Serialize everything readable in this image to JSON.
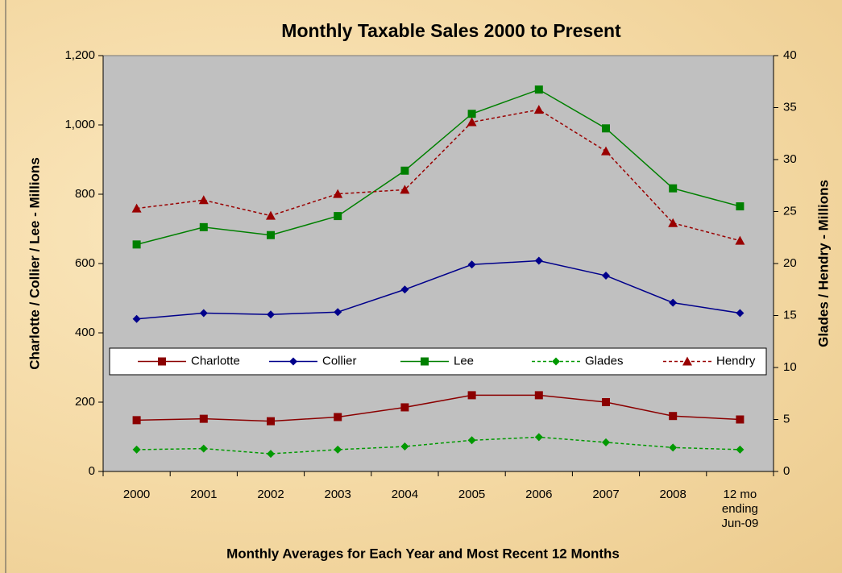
{
  "chart_data": {
    "type": "line",
    "title": "Monthly Taxable Sales 2000 to Present",
    "x_label": "Monthly Averages  for Each Year and Most Recent  12 Months",
    "y_label": "Charlotte / Collier / Lee - Millions",
    "y2_label": "Glades / Hendry - Millions",
    "categories": [
      "2000",
      "2001",
      "2002",
      "2003",
      "2004",
      "2005",
      "2006",
      "2007",
      "2008",
      "12 mo ending Jun-09"
    ],
    "ylim": [
      0,
      1200
    ],
    "yticks": [
      0,
      200,
      400,
      600,
      800,
      {
        "value": 1000,
        "label": "1,000"
      },
      {
        "value": 1200,
        "label": "1,200"
      }
    ],
    "y2lim": [
      0,
      40
    ],
    "y2ticks": [
      0,
      5,
      10,
      15,
      20,
      25,
      30,
      35,
      40
    ],
    "grid": false,
    "legend": "center",
    "series": [
      {
        "name": "Charlotte",
        "color": "#8b0000",
        "marker": "square",
        "dashed": false,
        "values": [
          148,
          152,
          145,
          157,
          185,
          220,
          220,
          200,
          160,
          150
        ]
      },
      {
        "name": "Collier",
        "color": "#00008b",
        "marker": "diamond",
        "dashed": false,
        "values": [
          440,
          457,
          453,
          460,
          525,
          597,
          608,
          565,
          487,
          457
        ]
      },
      {
        "name": "Lee",
        "color": "#008000",
        "marker": "square",
        "dashed": false,
        "values": [
          655,
          705,
          682,
          737,
          868,
          1032,
          1102,
          990,
          817,
          765
        ]
      },
      {
        "name": "Glades",
        "color": "#009900",
        "marker": "diamond",
        "dashed": true,
        "axis": "y2",
        "values": [
          2.1,
          2.2,
          1.7,
          2.1,
          2.4,
          3.0,
          3.3,
          2.8,
          2.3,
          2.1
        ]
      },
      {
        "name": "Hendry",
        "color": "#990000",
        "marker": "triangle",
        "dashed": true,
        "axis": "y2",
        "values": [
          25.3,
          26.1,
          24.6,
          26.7,
          27.1,
          33.6,
          34.8,
          30.8,
          23.9,
          22.2
        ]
      }
    ]
  }
}
